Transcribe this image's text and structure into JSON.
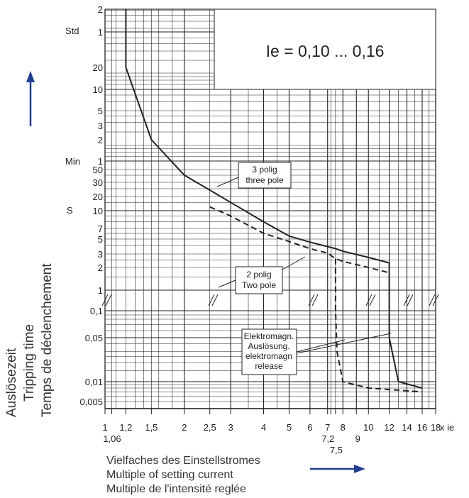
{
  "chart_data": {
    "type": "line",
    "title": "Ie = 0,10 ... 0,16",
    "ylabel": [
      "Auslösezeit",
      "Tripping time",
      "Temps de déclenchement"
    ],
    "xlabel": [
      "Vielfaches des Einstellstromes",
      "Multiple of setting current",
      "Multiple de l'intensité reglée"
    ],
    "x_unit": "x ie",
    "x_scale": "log",
    "x_ticks": [
      "1",
      "1,06",
      "1,2",
      "1,5",
      "2",
      "2,5",
      "3",
      "4",
      "5",
      "6",
      "7",
      "7,2",
      "7,5",
      "8",
      "9",
      "10",
      "12",
      "14",
      "16",
      "18"
    ],
    "y_unit_labels": [
      "Std",
      "Min",
      "S"
    ],
    "y_ticks": {
      "hours": [
        "2",
        "1"
      ],
      "minutes": [
        "20",
        "10",
        "5",
        "3",
        "2",
        "1",
        "50"
      ],
      "seconds": [
        "30",
        "20",
        "10",
        "7",
        "5",
        "3",
        "2",
        "1"
      ],
      "subsecond": [
        "0,1",
        "0,05",
        "0,01",
        "0,005"
      ]
    },
    "y_scale": "log (segmented, axis break between 1 s and 0,1 s)",
    "grid": true,
    "series": [
      {
        "name": "3 polig / three pole",
        "style": "solid",
        "points": [
          [
            1.2,
            "2 h"
          ],
          [
            1.2,
            "20 min"
          ],
          [
            1.5,
            "2 min"
          ],
          [
            2,
            "40 s"
          ],
          [
            2.5,
            "24 s"
          ],
          [
            3,
            "15 s"
          ],
          [
            4,
            "8 s"
          ],
          [
            5,
            "5,5 s"
          ],
          [
            6,
            "4,5 s"
          ],
          [
            7.5,
            "3,6 s"
          ],
          [
            8,
            "3,3 s"
          ],
          [
            10,
            "2,7 s"
          ],
          [
            12,
            "2,3 s"
          ],
          [
            12,
            "0,05 s"
          ],
          [
            13,
            "0,01 s"
          ],
          [
            16,
            "0,008 s"
          ]
        ]
      },
      {
        "name": "2 polig / Two pole",
        "style": "dashed",
        "points": [
          [
            2.5,
            "12 s"
          ],
          [
            3,
            "9 s"
          ],
          [
            4,
            "6 s"
          ],
          [
            5,
            "4,6 s"
          ],
          [
            6,
            "3,6 s"
          ],
          [
            7,
            "3,1 s"
          ],
          [
            7.5,
            "2,6 s"
          ],
          [
            8,
            "2,4 s"
          ],
          [
            10,
            "2,0 s"
          ],
          [
            12,
            "1,7 s"
          ]
        ]
      },
      {
        "name": "Elektromagn. Auslösung / elektromagn release",
        "style": "dashed",
        "points": [
          [
            7.5,
            "2,6 s"
          ],
          [
            7.5,
            "0,1 s"
          ],
          [
            7.6,
            "0,03 s"
          ],
          [
            8,
            "0,01 s"
          ],
          [
            10,
            "0,008 s"
          ],
          [
            16,
            "0,007 s"
          ]
        ]
      }
    ],
    "annotations": [
      {
        "text": [
          "3 polig",
          "three pole"
        ]
      },
      {
        "text": [
          "2 polig",
          "Two pole"
        ]
      },
      {
        "text": [
          "Elektromagn.",
          "Auslösung.",
          "elektromagn",
          "release"
        ]
      }
    ]
  },
  "decor": {
    "axis_color": "#222222",
    "arrow_color": "#1f3f8f"
  }
}
